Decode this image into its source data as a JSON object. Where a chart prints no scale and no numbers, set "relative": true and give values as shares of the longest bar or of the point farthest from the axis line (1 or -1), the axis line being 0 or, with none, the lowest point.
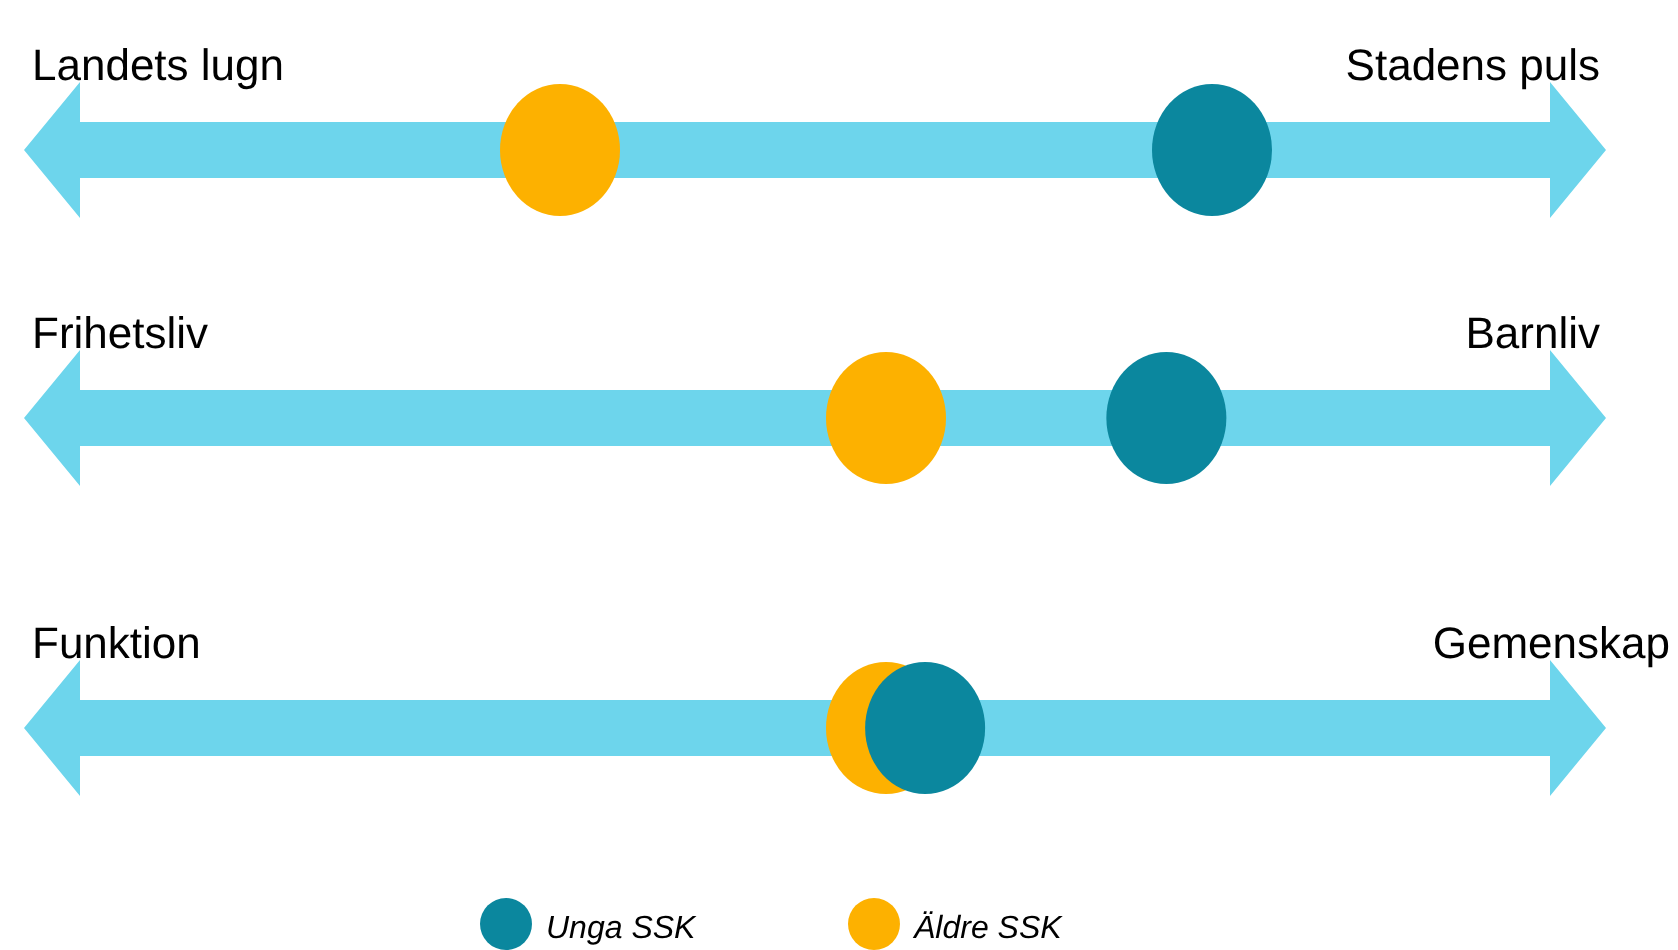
{
  "chart_data": {
    "type": "scatter",
    "orientation": "horizontal",
    "relative": true,
    "categories": [
      "Landets lugn",
      "Frihetsliv",
      "Funktion"
    ],
    "annotations": [
      "Stadens puls",
      "Barnliv",
      "Gemenskap"
    ],
    "series": [
      {
        "name": "Äldre SSK",
        "color": "#fdb100",
        "values": [
          0,
          0.5,
          0.5
        ]
      },
      {
        "name": "Unga SSK",
        "color": "#0b879e",
        "values": [
          1,
          0.93,
          0.56
        ]
      }
    ],
    "legend": "bottom",
    "marker": "circle"
  }
}
